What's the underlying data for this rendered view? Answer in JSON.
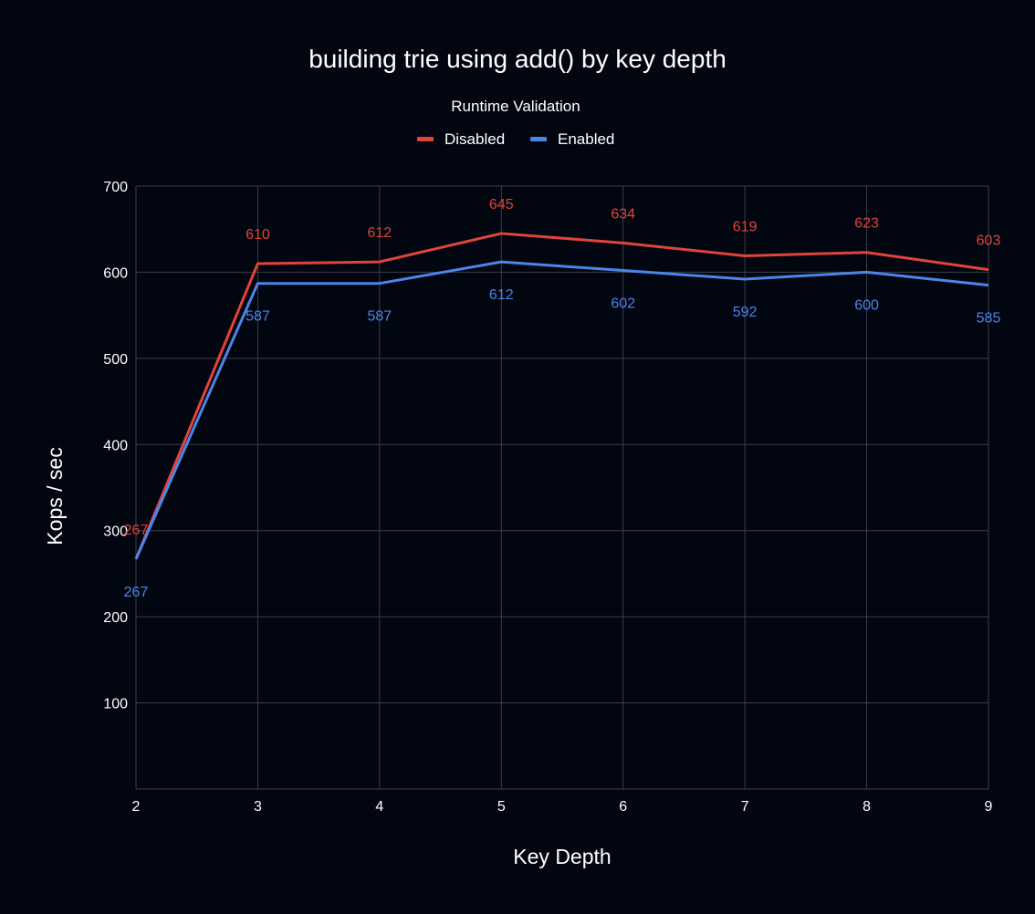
{
  "chart_data": {
    "type": "line",
    "title": "building trie using add() by key depth",
    "legend_title": "Runtime Validation",
    "legend_position": "top",
    "xlabel": "Key Depth",
    "ylabel": "Kops / sec",
    "x": [
      2,
      3,
      4,
      5,
      6,
      7,
      8,
      9
    ],
    "x_tick_labels": [
      "2",
      "3",
      "4",
      "5",
      "6",
      "7",
      "8",
      "9"
    ],
    "ylim": [
      0,
      700
    ],
    "y_ticks": [
      100,
      200,
      300,
      400,
      500,
      600,
      700
    ],
    "y_tick_labels": [
      "100",
      "200",
      "300",
      "400",
      "500",
      "600",
      "700"
    ],
    "grid": true,
    "series": [
      {
        "name": "Disabled",
        "color": "#e0443a",
        "values": [
          267,
          610,
          612,
          645,
          634,
          619,
          623,
          603
        ],
        "labels": [
          "267",
          "610",
          "612",
          "645",
          "634",
          "619",
          "623",
          "603"
        ],
        "label_position": "above"
      },
      {
        "name": "Enabled",
        "color": "#4a86e8",
        "values": [
          267,
          587,
          587,
          612,
          602,
          592,
          600,
          585
        ],
        "labels": [
          "267",
          "587",
          "587",
          "612",
          "602",
          "592",
          "600",
          "585"
        ],
        "label_position": "below"
      }
    ]
  }
}
